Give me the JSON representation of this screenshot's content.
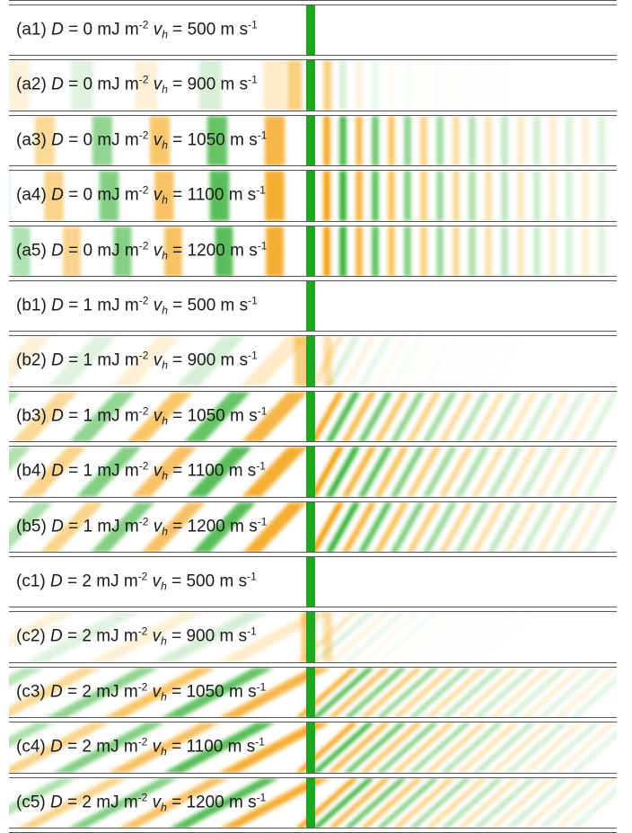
{
  "colors": {
    "positive": "#1fa81f",
    "negative": "#f5a00a",
    "background": "#ffffff",
    "separator": "#555555"
  },
  "panels": [
    {
      "id": "(a1)",
      "D": "0",
      "vh": "500"
    },
    {
      "id": "(a2)",
      "D": "0",
      "vh": "900"
    },
    {
      "id": "(a3)",
      "D": "0",
      "vh": "1050"
    },
    {
      "id": "(a4)",
      "D": "0",
      "vh": "1100"
    },
    {
      "id": "(a5)",
      "D": "0",
      "vh": "1200"
    },
    {
      "id": "(b1)",
      "D": "1",
      "vh": "500"
    },
    {
      "id": "(b2)",
      "D": "1",
      "vh": "900"
    },
    {
      "id": "(b3)",
      "D": "1",
      "vh": "1050"
    },
    {
      "id": "(b4)",
      "D": "1",
      "vh": "1100"
    },
    {
      "id": "(b5)",
      "D": "1",
      "vh": "1200"
    },
    {
      "id": "(c1)",
      "D": "2",
      "vh": "500"
    },
    {
      "id": "(c2)",
      "D": "2",
      "vh": "900"
    },
    {
      "id": "(c3)",
      "D": "2",
      "vh": "1050"
    },
    {
      "id": "(c4)",
      "D": "2",
      "vh": "1100"
    },
    {
      "id": "(c5)",
      "D": "2",
      "vh": "1200"
    }
  ],
  "label_parts": {
    "D_symbol": "D",
    "equals": " = ",
    "D_unit_a": " mJ m",
    "D_unit_exp": "-2",
    "v_symbol": "v",
    "v_sub": "h",
    "v_unit_a": " m s",
    "v_unit_exp": "-1"
  }
}
